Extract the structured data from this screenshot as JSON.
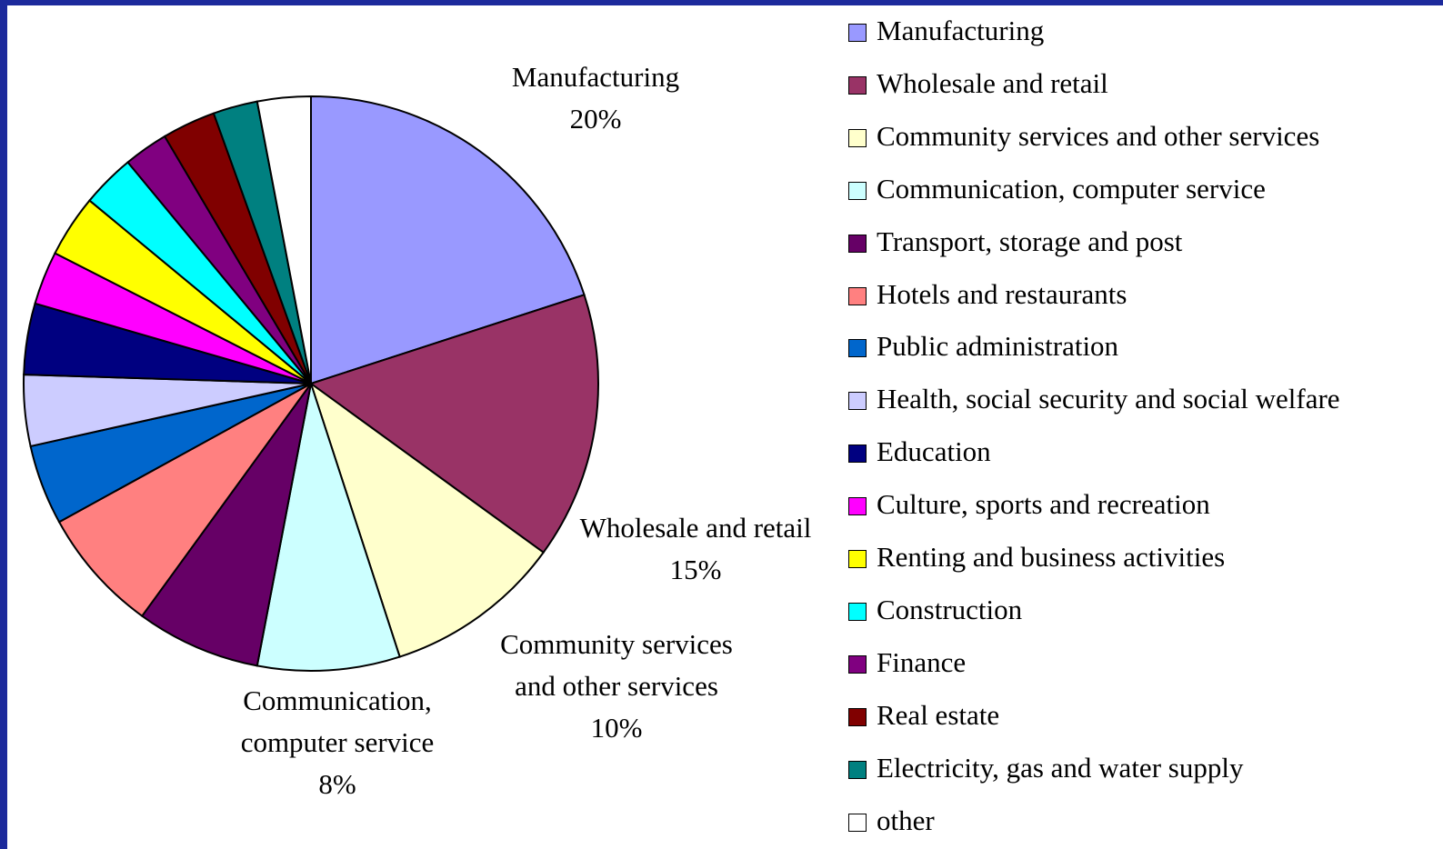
{
  "chart_data": {
    "type": "pie",
    "categories": [
      "Manufacturing",
      "Wholesale and retail",
      "Community services and other services",
      "Communication, computer service",
      "Transport, storage and post",
      "Hotels and restaurants",
      "Public administration",
      "Health, social security and social welfare",
      "Education",
      "Culture, sports and recreation",
      "Renting and business activities",
      "Construction",
      "Finance",
      "Real estate",
      "Electricity, gas and water supply",
      "other"
    ],
    "values": [
      20,
      15,
      10,
      8,
      7,
      7,
      4.5,
      4,
      4,
      3,
      3.5,
      3,
      2.5,
      3,
      2.5,
      3
    ],
    "value_labels": [
      "20%",
      "15%",
      "10%",
      "8%",
      null,
      null,
      null,
      null,
      null,
      null,
      null,
      null,
      null,
      null,
      null,
      null
    ],
    "colors": [
      "#9999ff",
      "#993366",
      "#ffffcc",
      "#ccffff",
      "#660066",
      "#ff8080",
      "#0066cc",
      "#ccccff",
      "#000080",
      "#ff00ff",
      "#ffff00",
      "#00ffff",
      "#800080",
      "#800000",
      "#008080",
      "#ffffff"
    ],
    "legend": "right"
  }
}
